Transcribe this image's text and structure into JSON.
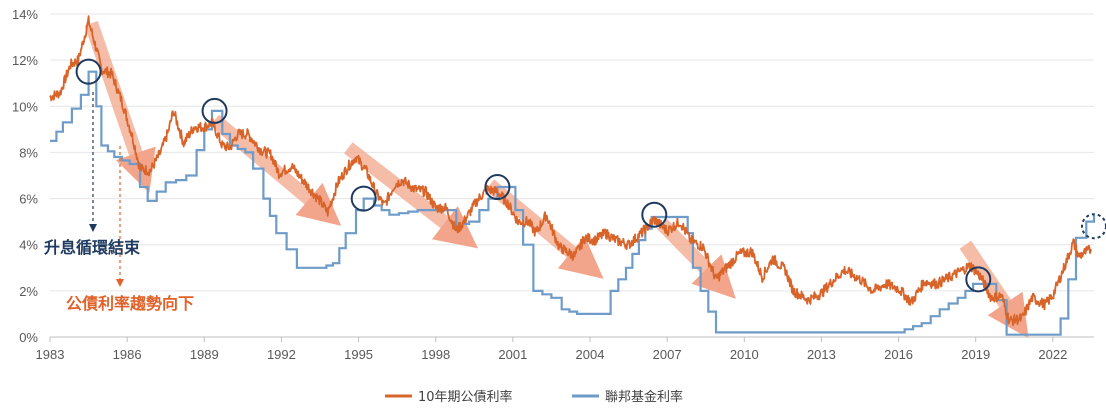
{
  "colors": {
    "treasury": "#D9642A",
    "fedfunds": "#6F9BC8",
    "trend_arrow": "#F2A58A",
    "circle": "#1F3A5F",
    "annot_blue": "#1F3A5F",
    "annot_orange": "#E0622A",
    "grid": "#E6E6E6"
  },
  "chart_data": {
    "type": "line",
    "x_ticks": [
      "1983",
      "1986",
      "1989",
      "1992",
      "1995",
      "1998",
      "2001",
      "2004",
      "2007",
      "2010",
      "2013",
      "2016",
      "2019",
      "2022"
    ],
    "y_ticks": [
      "0%",
      "2%",
      "4%",
      "6%",
      "8%",
      "10%",
      "12%",
      "14%"
    ],
    "xlim": [
      1983,
      2023.6
    ],
    "ylim": [
      0,
      14
    ],
    "grid": "horizontal",
    "legend_position": "bottom",
    "series": [
      {
        "name": "10年期公債利率",
        "color": "#D9642A",
        "points": [
          [
            1983.0,
            10.4
          ],
          [
            1983.4,
            10.6
          ],
          [
            1983.8,
            11.8
          ],
          [
            1984.1,
            12.0
          ],
          [
            1984.5,
            13.7
          ],
          [
            1984.8,
            12.5
          ],
          [
            1985.0,
            11.6
          ],
          [
            1985.4,
            11.4
          ],
          [
            1985.8,
            10.2
          ],
          [
            1986.2,
            8.7
          ],
          [
            1986.5,
            7.3
          ],
          [
            1986.9,
            7.2
          ],
          [
            1987.3,
            8.0
          ],
          [
            1987.6,
            8.9
          ],
          [
            1987.8,
            9.8
          ],
          [
            1988.2,
            8.4
          ],
          [
            1988.6,
            9.1
          ],
          [
            1989.0,
            9.1
          ],
          [
            1989.3,
            9.3
          ],
          [
            1989.7,
            8.3
          ],
          [
            1990.0,
            8.2
          ],
          [
            1990.3,
            8.8
          ],
          [
            1990.7,
            8.8
          ],
          [
            1991.2,
            8.1
          ],
          [
            1991.6,
            7.9
          ],
          [
            1991.9,
            7.1
          ],
          [
            1992.4,
            7.4
          ],
          [
            1992.9,
            6.7
          ],
          [
            1993.5,
            5.9
          ],
          [
            1993.8,
            5.4
          ],
          [
            1994.2,
            6.7
          ],
          [
            1994.6,
            7.4
          ],
          [
            1994.9,
            7.8
          ],
          [
            1995.3,
            7.2
          ],
          [
            1995.7,
            6.2
          ],
          [
            1996.0,
            5.7
          ],
          [
            1996.4,
            6.6
          ],
          [
            1996.7,
            6.8
          ],
          [
            1997.2,
            6.4
          ],
          [
            1997.6,
            6.3
          ],
          [
            1998.0,
            5.6
          ],
          [
            1998.4,
            5.6
          ],
          [
            1998.8,
            4.6
          ],
          [
            1999.1,
            5.0
          ],
          [
            1999.6,
            5.9
          ],
          [
            2000.0,
            6.4
          ],
          [
            2000.4,
            6.3
          ],
          [
            2000.8,
            5.8
          ],
          [
            2001.2,
            5.0
          ],
          [
            2001.6,
            5.0
          ],
          [
            2001.9,
            4.5
          ],
          [
            2002.3,
            5.3
          ],
          [
            2002.8,
            3.9
          ],
          [
            2003.4,
            3.5
          ],
          [
            2003.8,
            4.3
          ],
          [
            2004.2,
            4.2
          ],
          [
            2004.6,
            4.5
          ],
          [
            2005.0,
            4.2
          ],
          [
            2005.5,
            4.0
          ],
          [
            2006.0,
            4.5
          ],
          [
            2006.5,
            5.1
          ],
          [
            2007.0,
            4.6
          ],
          [
            2007.5,
            5.0
          ],
          [
            2007.9,
            4.2
          ],
          [
            2008.4,
            3.9
          ],
          [
            2008.9,
            2.5
          ],
          [
            2009.3,
            3.0
          ],
          [
            2009.8,
            3.6
          ],
          [
            2010.3,
            3.7
          ],
          [
            2010.7,
            2.6
          ],
          [
            2011.1,
            3.4
          ],
          [
            2011.6,
            2.9
          ],
          [
            2011.9,
            2.0
          ],
          [
            2012.5,
            1.6
          ],
          [
            2013.0,
            1.9
          ],
          [
            2013.5,
            2.5
          ],
          [
            2013.9,
            2.9
          ],
          [
            2014.5,
            2.5
          ],
          [
            2015.0,
            2.0
          ],
          [
            2015.5,
            2.3
          ],
          [
            2016.0,
            2.1
          ],
          [
            2016.5,
            1.5
          ],
          [
            2017.0,
            2.4
          ],
          [
            2017.5,
            2.3
          ],
          [
            2018.0,
            2.6
          ],
          [
            2018.8,
            3.1
          ],
          [
            2019.2,
            2.6
          ],
          [
            2019.6,
            1.7
          ],
          [
            2020.0,
            1.8
          ],
          [
            2020.3,
            0.7
          ],
          [
            2020.8,
            0.8
          ],
          [
            2021.2,
            1.7
          ],
          [
            2021.7,
            1.4
          ],
          [
            2022.0,
            1.8
          ],
          [
            2022.4,
            2.9
          ],
          [
            2022.8,
            4.1
          ],
          [
            2023.0,
            3.5
          ],
          [
            2023.3,
            3.7
          ],
          [
            2023.5,
            3.8
          ]
        ]
      },
      {
        "name": "聯邦基金利率",
        "color": "#6F9BC8",
        "points": [
          [
            1983.0,
            8.5
          ],
          [
            1983.5,
            9.3
          ],
          [
            1984.2,
            10.5
          ],
          [
            1984.5,
            11.5
          ],
          [
            1984.8,
            10.0
          ],
          [
            1985.0,
            8.3
          ],
          [
            1985.5,
            7.8
          ],
          [
            1986.1,
            7.5
          ],
          [
            1986.5,
            6.5
          ],
          [
            1986.8,
            5.9
          ],
          [
            1987.5,
            6.7
          ],
          [
            1987.9,
            6.8
          ],
          [
            1988.3,
            7.0
          ],
          [
            1988.7,
            8.1
          ],
          [
            1989.0,
            9.0
          ],
          [
            1989.3,
            9.8
          ],
          [
            1989.7,
            8.8
          ],
          [
            1990.0,
            8.3
          ],
          [
            1990.6,
            8.0
          ],
          [
            1990.9,
            7.3
          ],
          [
            1991.3,
            6.0
          ],
          [
            1991.8,
            4.5
          ],
          [
            1992.2,
            3.8
          ],
          [
            1992.6,
            3.0
          ],
          [
            1993.5,
            3.0
          ],
          [
            1994.0,
            3.2
          ],
          [
            1994.5,
            4.5
          ],
          [
            1994.9,
            5.5
          ],
          [
            1995.2,
            6.0
          ],
          [
            1995.6,
            5.7
          ],
          [
            1996.2,
            5.3
          ],
          [
            1997.3,
            5.5
          ],
          [
            1998.5,
            5.5
          ],
          [
            1998.8,
            4.8
          ],
          [
            1999.3,
            5.0
          ],
          [
            1999.7,
            5.5
          ],
          [
            2000.4,
            6.5
          ],
          [
            2000.9,
            6.5
          ],
          [
            2001.1,
            5.5
          ],
          [
            2001.4,
            4.0
          ],
          [
            2001.8,
            2.0
          ],
          [
            2002.5,
            1.7
          ],
          [
            2002.9,
            1.2
          ],
          [
            2003.5,
            1.0
          ],
          [
            2004.4,
            1.0
          ],
          [
            2004.8,
            2.0
          ],
          [
            2005.4,
            3.0
          ],
          [
            2005.9,
            4.2
          ],
          [
            2006.4,
            5.2
          ],
          [
            2007.6,
            5.2
          ],
          [
            2007.8,
            4.5
          ],
          [
            2008.0,
            3.0
          ],
          [
            2008.3,
            2.0
          ],
          [
            2008.9,
            0.2
          ],
          [
            2015.9,
            0.2
          ],
          [
            2016.9,
            0.6
          ],
          [
            2017.6,
            1.2
          ],
          [
            2018.3,
            1.7
          ],
          [
            2018.9,
            2.3
          ],
          [
            2019.5,
            2.3
          ],
          [
            2019.8,
            1.6
          ],
          [
            2020.2,
            0.1
          ],
          [
            2022.0,
            0.1
          ],
          [
            2022.3,
            0.8
          ],
          [
            2022.6,
            2.5
          ],
          [
            2022.9,
            4.3
          ],
          [
            2023.3,
            5.0
          ],
          [
            2023.6,
            5.3
          ]
        ]
      }
    ],
    "annotations": [
      {
        "text": "升息循環結束"
      },
      {
        "text": "公債利率趨勢向下"
      }
    ]
  }
}
